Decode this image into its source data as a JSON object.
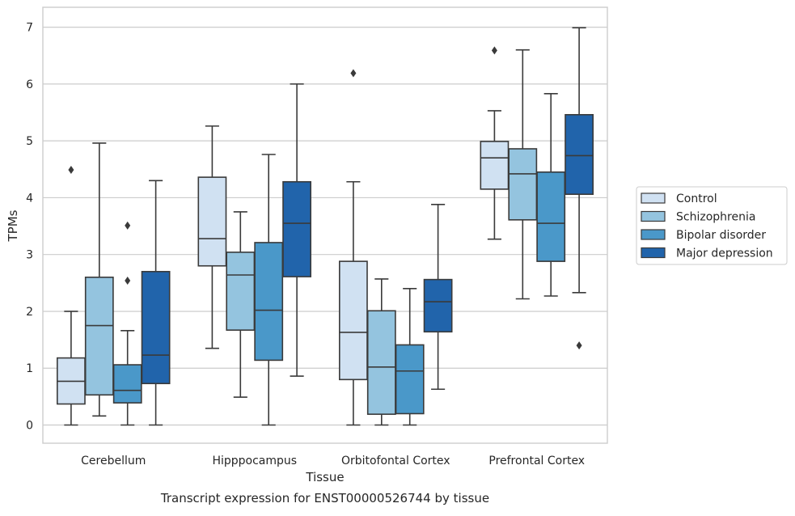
{
  "chart_data": {
    "type": "box",
    "title": "",
    "xlabel": "Tissue",
    "ylabel": "TPMs",
    "caption": "Transcript expression for ENST00000526744 by tissue",
    "ylim": [
      -0.32,
      7.35
    ],
    "yticks": [
      0,
      1,
      2,
      3,
      4,
      5,
      6,
      7
    ],
    "grid": "horizontal",
    "legend_position": "right",
    "categories": [
      "Cerebellum",
      "Hipppocampus",
      "Orbitofontal Cortex",
      "Prefrontal Cortex"
    ],
    "series": [
      {
        "name": "Control",
        "color": "#d0e1f2",
        "boxes": [
          {
            "whislo": 0.0,
            "q1": 0.37,
            "med": 0.77,
            "q3": 1.18,
            "whishi": 2.0,
            "fliers": [
              4.49
            ]
          },
          {
            "whislo": 1.35,
            "q1": 2.8,
            "med": 3.28,
            "q3": 4.36,
            "whishi": 5.26,
            "fliers": []
          },
          {
            "whislo": 0.0,
            "q1": 0.8,
            "med": 1.63,
            "q3": 2.88,
            "whishi": 4.28,
            "fliers": [
              6.19
            ]
          },
          {
            "whislo": 3.27,
            "q1": 4.15,
            "med": 4.7,
            "q3": 4.99,
            "whishi": 5.53,
            "fliers": [
              6.59
            ]
          }
        ]
      },
      {
        "name": "Schizophrenia",
        "color": "#94c4df",
        "boxes": [
          {
            "whislo": 0.16,
            "q1": 0.53,
            "med": 1.75,
            "q3": 2.6,
            "whishi": 4.96,
            "fliers": []
          },
          {
            "whislo": 0.49,
            "q1": 1.67,
            "med": 2.64,
            "q3": 3.04,
            "whishi": 3.75,
            "fliers": []
          },
          {
            "whislo": 0.0,
            "q1": 0.19,
            "med": 1.02,
            "q3": 2.01,
            "whishi": 2.57,
            "fliers": []
          },
          {
            "whislo": 2.22,
            "q1": 3.61,
            "med": 4.42,
            "q3": 4.86,
            "whishi": 6.6,
            "fliers": []
          }
        ]
      },
      {
        "name": "Bipolar disorder",
        "color": "#4a98c9",
        "boxes": [
          {
            "whislo": 0.0,
            "q1": 0.39,
            "med": 0.61,
            "q3": 1.06,
            "whishi": 1.66,
            "fliers": [
              2.54,
              3.51
            ]
          },
          {
            "whislo": 0.0,
            "q1": 1.14,
            "med": 2.02,
            "q3": 3.21,
            "whishi": 4.76,
            "fliers": []
          },
          {
            "whislo": 0.0,
            "q1": 0.2,
            "med": 0.95,
            "q3": 1.41,
            "whishi": 2.4,
            "fliers": []
          },
          {
            "whislo": 2.27,
            "q1": 2.88,
            "med": 3.55,
            "q3": 4.45,
            "whishi": 5.83,
            "fliers": []
          }
        ]
      },
      {
        "name": "Major depression",
        "color": "#2164ab",
        "boxes": [
          {
            "whislo": 0.0,
            "q1": 0.73,
            "med": 1.23,
            "q3": 2.7,
            "whishi": 4.3,
            "fliers": []
          },
          {
            "whislo": 0.86,
            "q1": 2.61,
            "med": 3.55,
            "q3": 4.28,
            "whishi": 6.0,
            "fliers": []
          },
          {
            "whislo": 0.63,
            "q1": 1.64,
            "med": 2.17,
            "q3": 2.56,
            "whishi": 3.88,
            "fliers": []
          },
          {
            "whislo": 2.33,
            "q1": 4.06,
            "med": 4.74,
            "q3": 5.46,
            "whishi": 6.99,
            "fliers": [
              1.4
            ]
          }
        ]
      }
    ]
  }
}
